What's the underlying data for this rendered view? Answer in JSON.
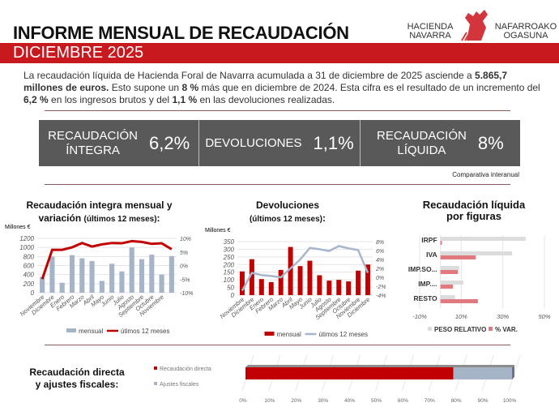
{
  "header": {
    "title": "INFORME MENSUAL DE RECAUDACIÓN",
    "period": "DICIEMBRE 2025",
    "logo": {
      "left": "HACIENDA NAVARRA",
      "right": "NAFARROAKO OGASUNA"
    }
  },
  "intro": {
    "p1": "La recaudación líquida de Hacienda Foral de Navarra acumulada a 31 de diciembre de 2025 asciende a ",
    "b1": "5.865,7 millones de euros.",
    "p2": " Esto supone un ",
    "b2": "8 %",
    "p3": " más que en diciembre de 2024. Esta cifra es el resultado de un incremento del ",
    "b3": "6,2 %",
    "p4": " en los ingresos brutos y del ",
    "b4": "1,1 %",
    "p5": " en las devoluciones realizadas."
  },
  "kpis": [
    {
      "label1": "RECAUDACIÓN",
      "label2": "ÍNTEGRA",
      "value": "6,2%"
    },
    {
      "label1": "DEVOLUCIONES",
      "label2": "",
      "value": "1,1%"
    },
    {
      "label1": "RECAUDACIÓN",
      "label2": "LÍQUIDA",
      "value": "8%"
    }
  ],
  "kpi_note": "Comparativa interanual",
  "colors": {
    "brand_red": "#c8191f",
    "bar_gray": "#a6b4c8",
    "line_gray": "#a8b6cc",
    "kpi_bg": "#595959",
    "pink": "#e07a7e",
    "light_gray": "#dcdcdc"
  },
  "chart_data": [
    {
      "type": "bar+line",
      "title1": "Recaudación integra mensual y",
      "title2": "variación",
      "title_sub": "(últimos 12 meses)",
      "title_colon": ":",
      "ylabel": "Millones €",
      "categories": [
        "Noviembre",
        "Diciembre",
        "Enero",
        "Febrero",
        "Marzo",
        "Abril",
        "Mayo",
        "Junio",
        "Julio",
        "Agosto",
        "Septiembre",
        "Octubre",
        "Noviembre",
        ""
      ],
      "yticks": [
        "0",
        "200",
        "400",
        "600",
        "800",
        "1000",
        "1200"
      ],
      "ylim": [
        0,
        1200
      ],
      "y2ticks": [
        "-10%",
        "-5%",
        "0%",
        "5%",
        "10%"
      ],
      "y2lim": [
        -10,
        10
      ],
      "series": [
        {
          "name": "mensual",
          "type": "bar",
          "values": [
            350,
            800,
            220,
            830,
            760,
            700,
            260,
            640,
            470,
            1000,
            740,
            840,
            400,
            810
          ]
        },
        {
          "name": "útimos 12 meses",
          "type": "line",
          "values": [
            -5,
            5.8,
            5.8,
            6.7,
            8.3,
            7,
            7.8,
            8.3,
            8.2,
            9,
            8.7,
            8,
            8.2,
            6
          ]
        }
      ]
    },
    {
      "type": "bar+line",
      "title1": "Devoluciones",
      "title_sub": "(últimos 12 meses)",
      "title_colon": ":",
      "ylabel": "Millones €",
      "categories": [
        "Noviembre",
        "Diciembre",
        "Enero",
        "Febrero",
        "Marzo",
        "Abril",
        "Mayo",
        "Junio",
        "Julio",
        "Agosto",
        "Septiembre",
        "Octubre",
        "Noviembre",
        "Diciembre"
      ],
      "yticks": [
        "0",
        "50",
        "100",
        "150",
        "200",
        "250",
        "300",
        "350"
      ],
      "ylim": [
        0,
        350
      ],
      "y2ticks": [
        "-4%",
        "-2%",
        "0%",
        "2%",
        "4%",
        "6%",
        "8%"
      ],
      "y2lim": [
        -4,
        8
      ],
      "series": [
        {
          "name": "mensual",
          "type": "bar",
          "values": [
            155,
            235,
            105,
            85,
            165,
            315,
            190,
            225,
            130,
            95,
            100,
            90,
            160,
            200
          ]
        },
        {
          "name": "útimos 12 meses",
          "type": "line",
          "values": [
            -3,
            1,
            0.5,
            0.3,
            0,
            2,
            4,
            6.6,
            6.3,
            5.9,
            7,
            6.5,
            6.1,
            1
          ]
        }
      ]
    },
    {
      "type": "hbar",
      "title1": "Recaudación líquida",
      "title2": "por figuras",
      "categories": [
        "IRPF",
        "IVA",
        "IMP.SO...",
        "IMP....",
        "RESTO"
      ],
      "xticks": [
        "-10%",
        "10%",
        "30%",
        "50%"
      ],
      "xlim": [
        -10,
        50
      ],
      "series": [
        {
          "name": "PESO RELATIVO",
          "values": [
            41,
            34.5,
            9,
            11,
            7
          ]
        },
        {
          "name": "% VAR.",
          "values": [
            0.7,
            17,
            8.4,
            6,
            18
          ]
        }
      ]
    },
    {
      "type": "stacked-bar",
      "title1": "Recaudación directa",
      "title2": "y ajustes fiscales:",
      "xticks": [
        "0%",
        "10%",
        "20%",
        "30%",
        "40%",
        "50%",
        "60%",
        "70%",
        "80%",
        "90%",
        "100%"
      ],
      "xlim": [
        0,
        100
      ],
      "series": [
        {
          "name": "Recaudación directa",
          "values": [
            78
          ]
        },
        {
          "name": "Ajustes fiscales",
          "values": [
            22
          ]
        }
      ]
    }
  ]
}
